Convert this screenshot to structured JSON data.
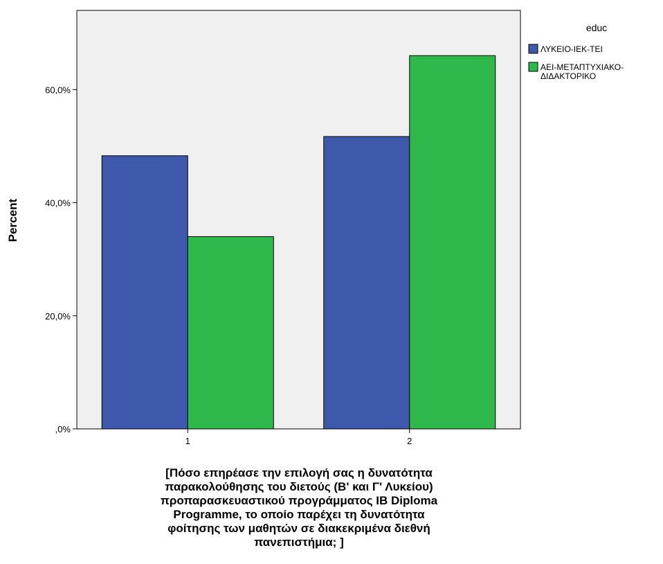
{
  "chart_data": {
    "type": "bar",
    "categories": [
      "1",
      "2"
    ],
    "series": [
      {
        "name": "ΛΥΚΕΙΟ-ΙΕΚ-ΤΕΙ",
        "values": [
          48.3,
          51.7
        ],
        "color": "#3e58ab"
      },
      {
        "name": "ΑΕΙ-ΜΕΤΑΠΤΥΧΙΑΚΟ-ΔΙΔΑΚΤΟΡΙΚΟ",
        "values": [
          34.0,
          66.0
        ],
        "color": "#2fb94a"
      }
    ],
    "ylim": [
      0,
      74
    ],
    "yticks": [
      0,
      20,
      40,
      60
    ],
    "ytick_labels": [
      ",0%",
      "20,0%",
      "40,0%",
      "60,0%"
    ],
    "ylabel": "Percent",
    "xlabel_lines": [
      "[Πόσο επηρέασε την επιλογή σας η δυνατότητα",
      "παρακολούθησης του διετούς (Β' και Γ' Λυκείου)",
      "προπαρασκευαστικού προγράμματος IB Diploma",
      "Programme, το οποίο παρέχει τη δυνατότητα",
      "φοίτησης των μαθητών σε διακεκριμένα διεθνή",
      "πανεπιστήμια; ]"
    ],
    "legend_title": "educ",
    "legend_lines": [
      [
        "ΛΥΚΕΙΟ-ΙΕΚ-ΤΕΙ"
      ],
      [
        "ΑΕΙ-ΜΕΤΑΠΤΥΧΙΑΚΟ-",
        "ΔΙΔΑΚΤΟΡΙΚΟ"
      ]
    ],
    "legend_position": "top-right",
    "plot_background": "#f0f0f0",
    "grid": false
  }
}
